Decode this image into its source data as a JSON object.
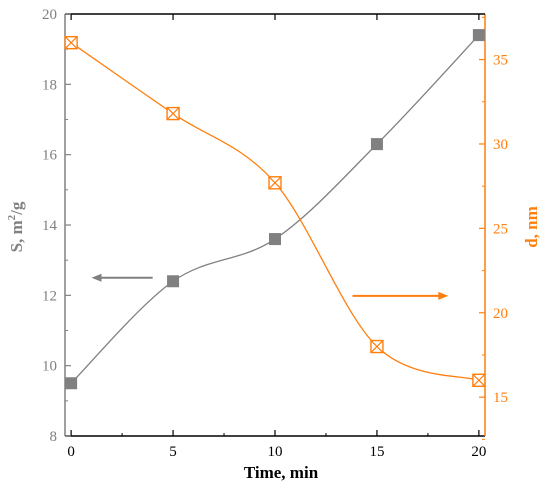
{
  "chart_data": {
    "type": "line",
    "title": "",
    "xlabel": "Time, min",
    "ylabel_left": {
      "main": "S, m",
      "sup": "2",
      "tail": "/g"
    },
    "ylabel_right": "d, nm",
    "xlim": [
      -0.3,
      20.3
    ],
    "ylim_left": [
      8,
      20
    ],
    "ylim_right": [
      12.7,
      37.7
    ],
    "x_ticks": [
      0,
      5,
      10,
      15,
      20
    ],
    "y_left_ticks": [
      8,
      10,
      12,
      14,
      16,
      18,
      20
    ],
    "y_right_ticks": [
      15,
      20,
      25,
      30,
      35
    ],
    "grid": false,
    "colors": {
      "s_series": "#808080",
      "d_series": "#ff7f0e",
      "axis": "#000000"
    },
    "series": [
      {
        "axis": "left",
        "marker": "square",
        "x": [
          0,
          5,
          10,
          15,
          20
        ],
        "values": [
          9.5,
          12.4,
          13.6,
          16.3,
          19.4
        ]
      },
      {
        "axis": "right",
        "marker": "boxed-x",
        "x": [
          0,
          5,
          10,
          15,
          20
        ],
        "values": [
          36,
          31.8,
          27.7,
          18,
          16
        ]
      }
    ],
    "arrows": [
      {
        "series": 0,
        "direction": "left",
        "x_from": 4,
        "x_to": 1,
        "y": 12.5
      },
      {
        "series": 1,
        "direction": "right",
        "x_from": 13.8,
        "x_to": 18.5,
        "y": 21
      }
    ]
  }
}
